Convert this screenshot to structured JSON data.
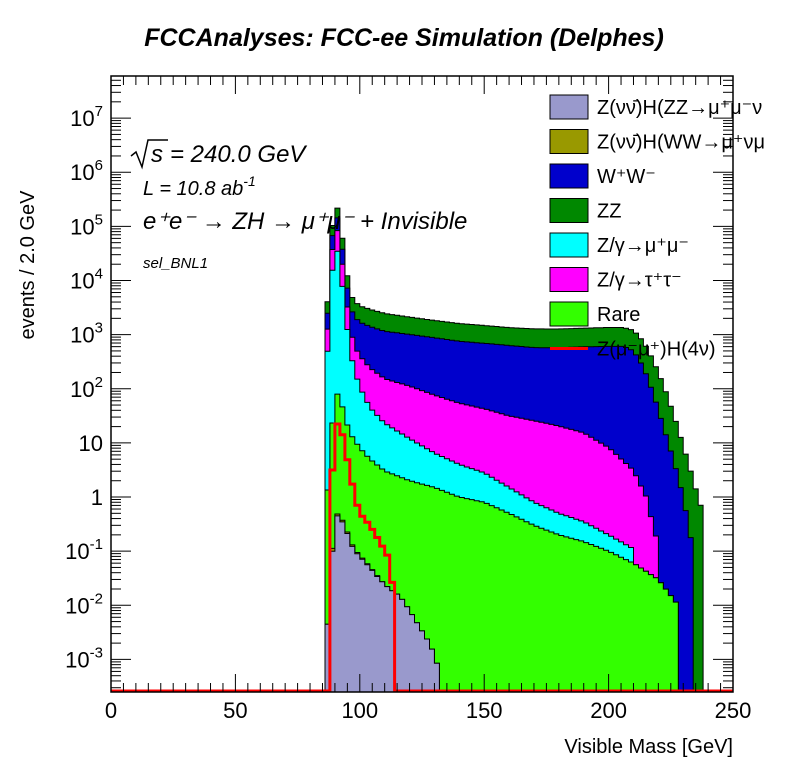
{
  "title": "FCCAnalyses: FCC-ee Simulation (Delphes)",
  "annotations": {
    "sqrts": "= 240.0 GeV",
    "lumi": "L = 10.8 ab",
    "lumi_exp": "-1",
    "process": "e⁺e⁻ → ZH → μ⁺μ⁻ + Invisible",
    "selection": "sel_BNL1"
  },
  "chart_data": {
    "type": "area",
    "title": "FCCAnalyses: FCC-ee Simulation (Delphes)",
    "xlabel": "Visible Mass [GeV]",
    "ylabel": "events / 2.0 GeV",
    "xlim": [
      0,
      250
    ],
    "ylim": [
      0.00025,
      60000000
    ],
    "yscale": "log",
    "bin_width": 2.0,
    "x_ticks": [
      "0",
      "50",
      "100",
      "150",
      "200",
      "250"
    ],
    "y_ticks": [
      {
        "base": "10",
        "exp": "-3"
      },
      {
        "base": "10",
        "exp": "-2"
      },
      {
        "base": "10",
        "exp": "-1"
      },
      {
        "base": "1",
        "exp": ""
      },
      {
        "base": "10",
        "exp": ""
      },
      {
        "base": "10",
        "exp": "2"
      },
      {
        "base": "10",
        "exp": "3"
      },
      {
        "base": "10",
        "exp": "4"
      },
      {
        "base": "10",
        "exp": "5"
      },
      {
        "base": "10",
        "exp": "6"
      },
      {
        "base": "10",
        "exp": "7"
      }
    ],
    "legend_position": "top-right",
    "stack_order": [
      "Z(νν̄)H(ZZ→μ⁺μ⁻νν̄)",
      "Z(νν̄)H(WW→μ⁺νμ⁻ν̄)",
      "Rare",
      "Z/γ→μ⁺μ⁻",
      "Z/γ→τ⁺τ⁻",
      "W⁺W⁻",
      "ZZ"
    ],
    "series": [
      {
        "name": "Z(νν̄)H(ZZ→μ⁺μ⁻νν̄)",
        "legend": "Z(νν̄)H(ZZ→μ⁺μ⁻ν",
        "color": "#9999cc",
        "kind": "stack",
        "points": [
          [
            85,
            0
          ],
          [
            86,
            0.001
          ],
          [
            88,
            0.02
          ],
          [
            90,
            0.5
          ],
          [
            92,
            0.4
          ],
          [
            94,
            0.3
          ],
          [
            96,
            0.15
          ],
          [
            98,
            0.1
          ],
          [
            100,
            0.08
          ],
          [
            104,
            0.05
          ],
          [
            108,
            0.03
          ],
          [
            112,
            0.02
          ],
          [
            116,
            0.015
          ],
          [
            120,
            0.008
          ],
          [
            124,
            0.004
          ],
          [
            128,
            0.002
          ],
          [
            130,
            0.0012
          ],
          [
            132,
            0.0006
          ],
          [
            134,
            0
          ]
        ]
      },
      {
        "name": "Z(νν̄)H(WW→μ⁺νμ⁻ν̄)",
        "legend": "Z(νν̄)H(WW→μ⁺νμ",
        "color": "#999900",
        "kind": "stack",
        "points": [
          [
            85,
            0
          ],
          [
            88,
            0.003
          ],
          [
            90,
            0.05
          ],
          [
            92,
            0.03
          ],
          [
            94,
            0.02
          ],
          [
            96,
            0.01
          ],
          [
            98,
            0.006
          ],
          [
            100,
            0.004
          ],
          [
            104,
            0.002
          ],
          [
            108,
            0.001
          ],
          [
            110,
            0
          ]
        ]
      },
      {
        "name": "Rare",
        "legend": "Rare",
        "color": "#33ff00",
        "kind": "stack",
        "points": [
          [
            85,
            0
          ],
          [
            86,
            0.3
          ],
          [
            88,
            6
          ],
          [
            90,
            90
          ],
          [
            92,
            70
          ],
          [
            94,
            30
          ],
          [
            96,
            15
          ],
          [
            100,
            8
          ],
          [
            104,
            5
          ],
          [
            110,
            3
          ],
          [
            120,
            2
          ],
          [
            130,
            1.5
          ],
          [
            140,
            1
          ],
          [
            150,
            0.8
          ],
          [
            160,
            0.5
          ],
          [
            170,
            0.3
          ],
          [
            180,
            0.2
          ],
          [
            190,
            0.15
          ],
          [
            200,
            0.1
          ],
          [
            210,
            0.06
          ],
          [
            220,
            0.03
          ],
          [
            228,
            0.01
          ],
          [
            232,
            0
          ]
        ]
      },
      {
        "name": "Z/γ→μ⁺μ⁻",
        "legend": "Z/γ→μ⁺μ⁻",
        "color": "#00ffff",
        "kind": "stack",
        "points": [
          [
            85,
            0
          ],
          [
            86,
            60
          ],
          [
            88,
            4000
          ],
          [
            90,
            60000
          ],
          [
            92,
            20000
          ],
          [
            94,
            3000
          ],
          [
            96,
            500
          ],
          [
            98,
            200
          ],
          [
            100,
            100
          ],
          [
            104,
            40
          ],
          [
            110,
            20
          ],
          [
            120,
            10
          ],
          [
            130,
            5
          ],
          [
            140,
            3
          ],
          [
            150,
            2
          ],
          [
            160,
            1
          ],
          [
            170,
            0.5
          ],
          [
            180,
            0.3
          ],
          [
            190,
            0.2
          ],
          [
            200,
            0.1
          ],
          [
            210,
            0.05
          ],
          [
            220,
            0
          ]
        ]
      },
      {
        "name": "Z/γ→τ⁺τ⁻",
        "legend": "Z/γ→τ⁺τ⁻",
        "color": "#ff00ff",
        "kind": "stack",
        "points": [
          [
            85,
            0
          ],
          [
            86,
            100
          ],
          [
            88,
            6000
          ],
          [
            90,
            80000
          ],
          [
            92,
            30000
          ],
          [
            94,
            5000
          ],
          [
            96,
            800
          ],
          [
            98,
            400
          ],
          [
            100,
            300
          ],
          [
            104,
            200
          ],
          [
            110,
            130
          ],
          [
            120,
            100
          ],
          [
            130,
            70
          ],
          [
            140,
            50
          ],
          [
            150,
            40
          ],
          [
            160,
            30
          ],
          [
            170,
            25
          ],
          [
            180,
            20
          ],
          [
            190,
            15
          ],
          [
            200,
            8
          ],
          [
            210,
            3
          ],
          [
            215,
            1
          ],
          [
            220,
            0.1
          ],
          [
            225,
            0
          ]
        ]
      },
      {
        "name": "W⁺W⁻",
        "legend": "W⁺W⁻",
        "color": "#0000cc",
        "kind": "stack",
        "points": [
          [
            85,
            0
          ],
          [
            86,
            150
          ],
          [
            88,
            10000
          ],
          [
            90,
            90000
          ],
          [
            92,
            40000
          ],
          [
            94,
            8000
          ],
          [
            96,
            2000
          ],
          [
            98,
            1500
          ],
          [
            100,
            1300
          ],
          [
            110,
            1000
          ],
          [
            120,
            900
          ],
          [
            130,
            800
          ],
          [
            140,
            700
          ],
          [
            150,
            650
          ],
          [
            160,
            600
          ],
          [
            170,
            550
          ],
          [
            180,
            550
          ],
          [
            190,
            580
          ],
          [
            200,
            600
          ],
          [
            206,
            600
          ],
          [
            210,
            500
          ],
          [
            214,
            250
          ],
          [
            218,
            80
          ],
          [
            222,
            20
          ],
          [
            226,
            5
          ],
          [
            230,
            1
          ],
          [
            234,
            0.1
          ],
          [
            236,
            0
          ]
        ]
      },
      {
        "name": "ZZ",
        "legend": "ZZ",
        "color": "#008800",
        "kind": "stack",
        "points": [
          [
            85,
            0
          ],
          [
            86,
            200
          ],
          [
            88,
            12000
          ],
          [
            90,
            110000
          ],
          [
            92,
            50000
          ],
          [
            94,
            10000
          ],
          [
            96,
            2500
          ],
          [
            98,
            2000
          ],
          [
            100,
            1700
          ],
          [
            110,
            1300
          ],
          [
            120,
            1100
          ],
          [
            130,
            950
          ],
          [
            140,
            850
          ],
          [
            150,
            780
          ],
          [
            160,
            720
          ],
          [
            170,
            700
          ],
          [
            180,
            700
          ],
          [
            190,
            720
          ],
          [
            200,
            750
          ],
          [
            206,
            750
          ],
          [
            210,
            700
          ],
          [
            214,
            500
          ],
          [
            218,
            250
          ],
          [
            222,
            100
          ],
          [
            226,
            30
          ],
          [
            230,
            8
          ],
          [
            234,
            2
          ],
          [
            238,
            0.5
          ],
          [
            240,
            0
          ]
        ]
      },
      {
        "name": "Z(μ⁻μ⁺)H(4ν)",
        "legend": "Z(μ⁻μ⁺)H(4ν)",
        "color": "#ff0000",
        "kind": "line",
        "points": [
          [
            86,
            0
          ],
          [
            88,
            0.5
          ],
          [
            90,
            20
          ],
          [
            92,
            25
          ],
          [
            94,
            8
          ],
          [
            96,
            3
          ],
          [
            98,
            1
          ],
          [
            100,
            0.5
          ],
          [
            104,
            0.3
          ],
          [
            108,
            0.15
          ],
          [
            112,
            0.07
          ],
          [
            114,
            0.01
          ],
          [
            116,
            0
          ]
        ]
      }
    ]
  }
}
